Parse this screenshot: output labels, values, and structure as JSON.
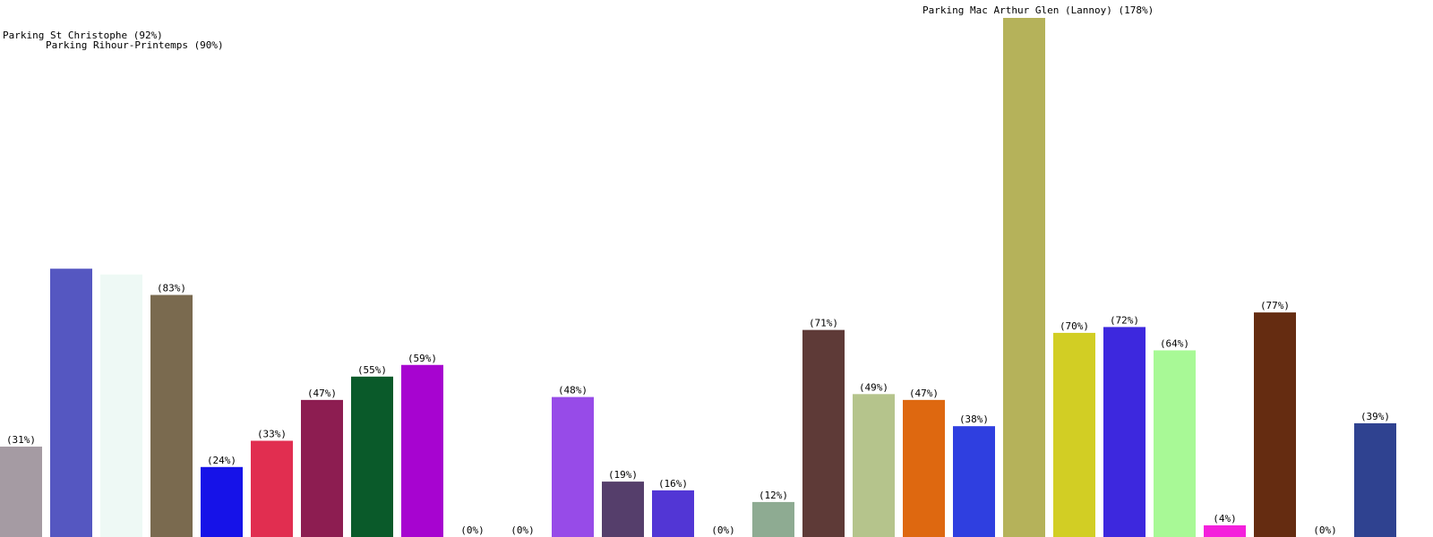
{
  "chart_data": {
    "type": "bar",
    "title": "",
    "xlabel": "",
    "ylabel": "",
    "ylim": [
      0,
      178
    ],
    "grid": false,
    "legend": "none",
    "bars": [
      {
        "value": 31,
        "label": "(31%)",
        "color": "#a59ba3"
      },
      {
        "value": 92,
        "label": "Parking St Christophe (92%)",
        "color": "#5557c1"
      },
      {
        "value": 90,
        "label": "Parking Rihour-Printemps (90%)",
        "color": "#eef9f5"
      },
      {
        "value": 83,
        "label": "(83%)",
        "color": "#7a6a4f"
      },
      {
        "value": 24,
        "label": "(24%)",
        "color": "#1612e8"
      },
      {
        "value": 33,
        "label": "(33%)",
        "color": "#e12e50"
      },
      {
        "value": 47,
        "label": "(47%)",
        "color": "#8d1d51"
      },
      {
        "value": 55,
        "label": "(55%)",
        "color": "#0a5a2a"
      },
      {
        "value": 59,
        "label": "(59%)",
        "color": "#a704d0"
      },
      {
        "value": 0,
        "label": "(0%)",
        "color": "#cccccc"
      },
      {
        "value": 0,
        "label": "(0%)",
        "color": "#cccccc"
      },
      {
        "value": 48,
        "label": "(48%)",
        "color": "#974be8"
      },
      {
        "value": 19,
        "label": "(19%)",
        "color": "#553e6b"
      },
      {
        "value": 16,
        "label": "(16%)",
        "color": "#5236d5"
      },
      {
        "value": 0,
        "label": "(0%)",
        "color": "#cccccc"
      },
      {
        "value": 12,
        "label": "(12%)",
        "color": "#8eab92"
      },
      {
        "value": 71,
        "label": "(71%)",
        "color": "#5e3a37"
      },
      {
        "value": 49,
        "label": "(49%)",
        "color": "#b5c48c"
      },
      {
        "value": 47,
        "label": "(47%)",
        "color": "#de6810"
      },
      {
        "value": 38,
        "label": "(38%)",
        "color": "#2f3fe0"
      },
      {
        "value": 178,
        "label": "Parking Mac Arthur Glen (Lannoy) (178%)",
        "color": "#b5b25a"
      },
      {
        "value": 70,
        "label": "(70%)",
        "color": "#d2ce24"
      },
      {
        "value": 72,
        "label": "(72%)",
        "color": "#3d28de"
      },
      {
        "value": 64,
        "label": "(64%)",
        "color": "#a8f996"
      },
      {
        "value": 4,
        "label": "(4%)",
        "color": "#f420dc"
      },
      {
        "value": 77,
        "label": "(77%)",
        "color": "#652c11"
      },
      {
        "value": 0,
        "label": "(0%)",
        "color": "#cccccc"
      },
      {
        "value": 39,
        "label": "(39%)",
        "color": "#2f4290"
      }
    ]
  }
}
